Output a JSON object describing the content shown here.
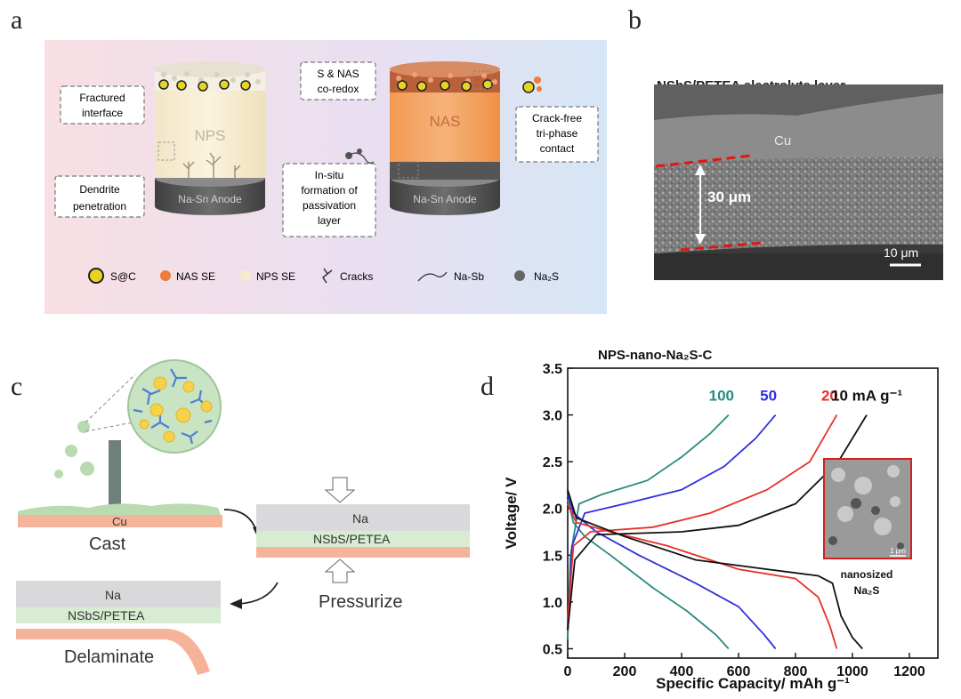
{
  "panel_labels": {
    "a": "a",
    "b": "b",
    "c": "c",
    "d": "d"
  },
  "panel_a": {
    "left_cylinder_label": "NPS",
    "right_cylinder_label": "NAS",
    "left_anode_label": "Na-Sn Anode",
    "right_anode_label": "Na-Sn Anode",
    "callouts": {
      "fractured": [
        "Fractured",
        "interface"
      ],
      "dendrite": [
        "Dendrite",
        "penetration"
      ],
      "coredox": [
        "S & NAS",
        "co-redox"
      ],
      "crackfree": [
        "Crack-free",
        "tri-phase",
        "contact"
      ],
      "insitu": [
        "In-situ",
        "formation of",
        "passivation",
        "layer"
      ]
    },
    "legend": [
      "S@C",
      "NAS SE",
      "NPS SE",
      "Cracks",
      "Na-Sb",
      "Na₂S"
    ],
    "colors": {
      "bg_left": "#f8dfe3",
      "bg_right": "#d6e6f6",
      "nas": "#f4a15b",
      "nps": "#f5ecd0",
      "anode": "#5a5a5a",
      "sac": "#e8d422"
    }
  },
  "panel_b": {
    "title": "NSbS/PETEA electrolyte layer",
    "cu_label": "Cu",
    "thickness_label": "30 μm",
    "scalebar_label": "10 μm"
  },
  "panel_c": {
    "cast_label": "Cast",
    "cu_label": "Cu",
    "na_label_right": "Na",
    "layer_label_right": "NSbS/PETEA",
    "pressurize_label": "Pressurize",
    "na_label_bottom": "Na",
    "layer_label_bottom": "NSbS/PETEA",
    "delaminate_label": "Delaminate",
    "colors": {
      "cu": "#f5b39a",
      "electrolyte": "#d8ecd2",
      "na": "#d9d9db",
      "drop": "#b8dbb0",
      "crosslink": "#4f7fd0",
      "particle": "#f6d24a"
    }
  },
  "chart_data": {
    "type": "line",
    "title": "NPS-nano-Na₂S-C",
    "xlabel": "Specific Capacity/ mAh g⁻¹",
    "ylabel": "Voltage/ V",
    "xlim": [
      0,
      1300
    ],
    "ylim": [
      0.4,
      3.5
    ],
    "xticks": [
      0,
      200,
      400,
      600,
      800,
      1000,
      1200
    ],
    "yticks": [
      0.5,
      1.0,
      1.5,
      2.0,
      2.5,
      3.0,
      3.5
    ],
    "inset_label": [
      "nanosized",
      "Na₂S"
    ],
    "inset_scale": "1 μm",
    "series": [
      {
        "name": "100",
        "color": "#2a8a80",
        "discharge": [
          [
            0,
            2.1
          ],
          [
            20,
            1.85
          ],
          [
            60,
            1.7
          ],
          [
            150,
            1.5
          ],
          [
            300,
            1.15
          ],
          [
            420,
            0.9
          ],
          [
            520,
            0.65
          ],
          [
            565,
            0.5
          ]
        ],
        "charge": [
          [
            0,
            0.6
          ],
          [
            10,
            1.5
          ],
          [
            40,
            2.05
          ],
          [
            120,
            2.15
          ],
          [
            280,
            2.3
          ],
          [
            400,
            2.55
          ],
          [
            500,
            2.8
          ],
          [
            565,
            3.0
          ]
        ]
      },
      {
        "name": "50",
        "color": "#2f2fe0",
        "discharge": [
          [
            0,
            2.15
          ],
          [
            20,
            1.95
          ],
          [
            100,
            1.75
          ],
          [
            250,
            1.5
          ],
          [
            450,
            1.2
          ],
          [
            600,
            0.95
          ],
          [
            690,
            0.65
          ],
          [
            730,
            0.5
          ]
        ],
        "charge": [
          [
            0,
            0.7
          ],
          [
            15,
            1.6
          ],
          [
            60,
            1.95
          ],
          [
            200,
            2.05
          ],
          [
            400,
            2.2
          ],
          [
            550,
            2.45
          ],
          [
            660,
            2.75
          ],
          [
            730,
            3.0
          ]
        ]
      },
      {
        "name": "20",
        "color": "#e8302a",
        "discharge": [
          [
            0,
            2.05
          ],
          [
            30,
            1.85
          ],
          [
            150,
            1.75
          ],
          [
            350,
            1.6
          ],
          [
            600,
            1.35
          ],
          [
            800,
            1.25
          ],
          [
            880,
            1.05
          ],
          [
            920,
            0.75
          ],
          [
            945,
            0.5
          ]
        ],
        "charge": [
          [
            0,
            0.8
          ],
          [
            20,
            1.6
          ],
          [
            80,
            1.75
          ],
          [
            300,
            1.8
          ],
          [
            500,
            1.95
          ],
          [
            700,
            2.2
          ],
          [
            850,
            2.5
          ],
          [
            945,
            3.0
          ]
        ]
      },
      {
        "name": "10 mA g⁻¹",
        "color": "#111111",
        "discharge": [
          [
            0,
            2.2
          ],
          [
            30,
            1.9
          ],
          [
            200,
            1.7
          ],
          [
            450,
            1.45
          ],
          [
            700,
            1.35
          ],
          [
            880,
            1.28
          ],
          [
            930,
            1.2
          ],
          [
            960,
            0.85
          ],
          [
            1000,
            0.62
          ],
          [
            1035,
            0.5
          ]
        ],
        "charge": [
          [
            0,
            0.7
          ],
          [
            25,
            1.45
          ],
          [
            100,
            1.72
          ],
          [
            400,
            1.75
          ],
          [
            600,
            1.82
          ],
          [
            800,
            2.05
          ],
          [
            950,
            2.5
          ],
          [
            1050,
            3.0
          ]
        ]
      }
    ]
  }
}
